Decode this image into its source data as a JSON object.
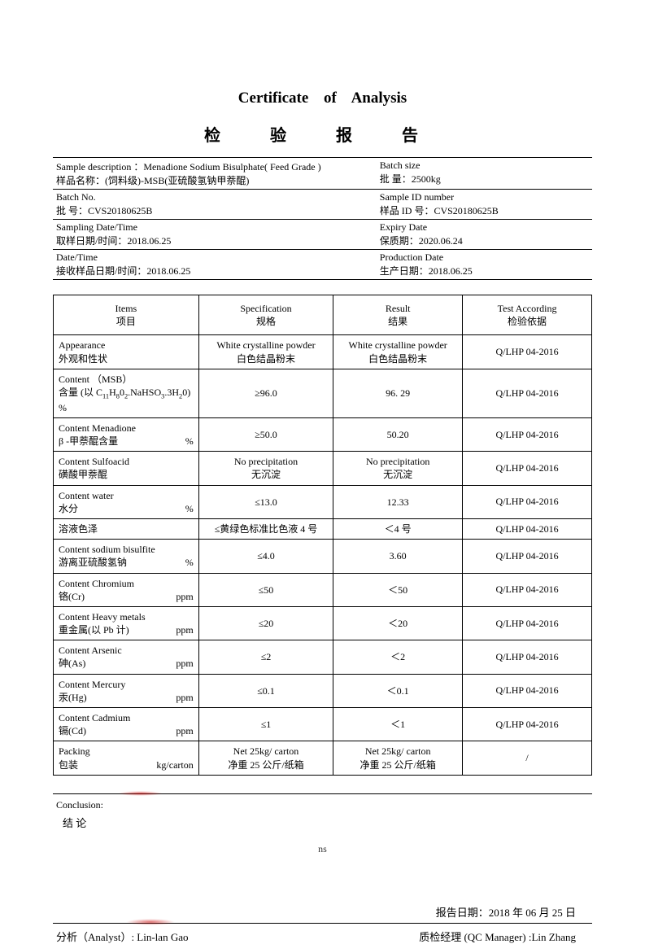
{
  "titles": {
    "en": "Certificate of Analysis",
    "cn": "检 验 报 告"
  },
  "header": [
    {
      "left_en": "Sample description ：Menadione Sodium Bisulphate( Feed Grade )",
      "left_cn": "样品名称：(饲料级)-MSB(亚硫酸氢钠甲萘醌)",
      "right_en": "Batch size",
      "right_cn": "批  量：2500kg"
    },
    {
      "left_en": "Batch No.",
      "left_cn": "批  号：CVS20180625B",
      "right_en": "Sample ID number",
      "right_cn": "样品 ID 号：CVS20180625B"
    },
    {
      "left_en": "Sampling Date/Time",
      "left_cn": "取样日期/时间：2018.06.25",
      "right_en": "Expiry Date",
      "right_cn": "保质期：2020.06.24"
    },
    {
      "left_en": "Date/Time",
      "left_cn": "接收样品日期/时间：2018.06.25",
      "right_en": "Production Date",
      "right_cn": "生产日期：2018.06.25"
    }
  ],
  "table": {
    "head": {
      "items_en": "Items",
      "items_cn": "项目",
      "spec_en": "Specification",
      "spec_cn": "规格",
      "res_en": "Result",
      "res_cn": "结果",
      "acc_en": "Test According",
      "acc_cn": "检验依据"
    },
    "rows": [
      {
        "item_en": "Appearance",
        "item_cn": "外观和性状",
        "unit": "",
        "spec_en": "White crystalline powder",
        "spec_cn": "白色结晶粉末",
        "res_en": "White crystalline powder",
        "res_cn": "白色结晶粉末",
        "acc": "Q/LHP 04-2016"
      },
      {
        "item_en": "Content  （MSB）",
        "item_cn_html": "含量 (以 C<sub>11</sub>H<sub>8</sub>0<sub>2</sub>.NaHSO<sub>3</sub>.3H<sub>2</sub>0) %",
        "unit": "",
        "spec": "≥96.0",
        "res": "96. 29",
        "acc": "Q/LHP 04-2016"
      },
      {
        "item_en": " Content  Menadione",
        "item_cn": " β -甲萘醌含量",
        "unit": "%",
        "spec": "≥50.0",
        "res": "50.20",
        "acc": "Q/LHP 04-2016"
      },
      {
        "item_en": "Content Sulfoacid",
        "item_cn": "磺酸甲萘醌",
        "unit": "",
        "spec_en": "No precipitation",
        "spec_cn": "无沉淀",
        "res_en": "No precipitation",
        "res_cn": "无沉淀",
        "acc": "Q/LHP 04-2016"
      },
      {
        "item_en": "Content water",
        "item_cn": "水分",
        "unit": "%",
        "spec": "≤13.0",
        "res": "12.33",
        "acc": "Q/LHP 04-2016"
      },
      {
        "item_en": "",
        "item_cn": "溶液色泽",
        "unit": "",
        "spec": "≤黄绿色标准比色液 4 号",
        "res": "＜4 号",
        "acc": "Q/LHP 04-2016"
      },
      {
        "item_en": "Content sodium bisulfite",
        "item_cn": "游离亚硫酸氢钠",
        "unit": "%",
        "spec": "≤4.0",
        "res": "3.60",
        "acc": "Q/LHP 04-2016"
      },
      {
        "item_en": "Content  Chromium",
        "item_cn": "铬(Cr)",
        "unit": "ppm",
        "spec": "≤50",
        "res": "＜50",
        "acc": "Q/LHP 04-2016"
      },
      {
        "item_en": "Content  Heavy metals",
        "item_cn": "重金属(以 Pb 计)",
        "unit": "ppm",
        "spec": "≤20",
        "res": "＜20",
        "acc": "Q/LHP 04-2016"
      },
      {
        "item_en": "Content  Arsenic",
        "item_cn": "砷(As)",
        "unit": "ppm",
        "spec": "≤2",
        "res": "＜2",
        "acc": "Q/LHP 04-2016"
      },
      {
        "item_en": "Content  Mercury",
        "item_cn": "汞(Hg)",
        "unit": "ppm",
        "spec": "≤0.1",
        "res": "＜0.1",
        "acc": "Q/LHP 04-2016"
      },
      {
        "item_en": "Content  Cadmium",
        "item_cn": "镉(Cd)",
        "unit": "ppm",
        "spec": "≤1",
        "res": "＜1",
        "acc": "Q/LHP 04-2016"
      },
      {
        "item_en": "Packing",
        "item_cn": "包装",
        "unit": "kg/carton",
        "spec_en": "Net 25kg/ carton",
        "spec_cn": "净重 25 公斤/纸箱",
        "res_en": "Net 25kg/ carton",
        "res_cn": "净重 25 公斤/纸箱",
        "acc": "/"
      }
    ]
  },
  "conclusion": {
    "en": "Conclusion:",
    "cn": "结 论",
    "ns": "ns"
  },
  "report_date": "报告日期：2018 年 06 月 25 日",
  "signatures": {
    "analyst": "分析（Analyst）: Lin-lan  Gao",
    "qc": "质检经理 (QC  Manager) :Lin  Zhang"
  }
}
